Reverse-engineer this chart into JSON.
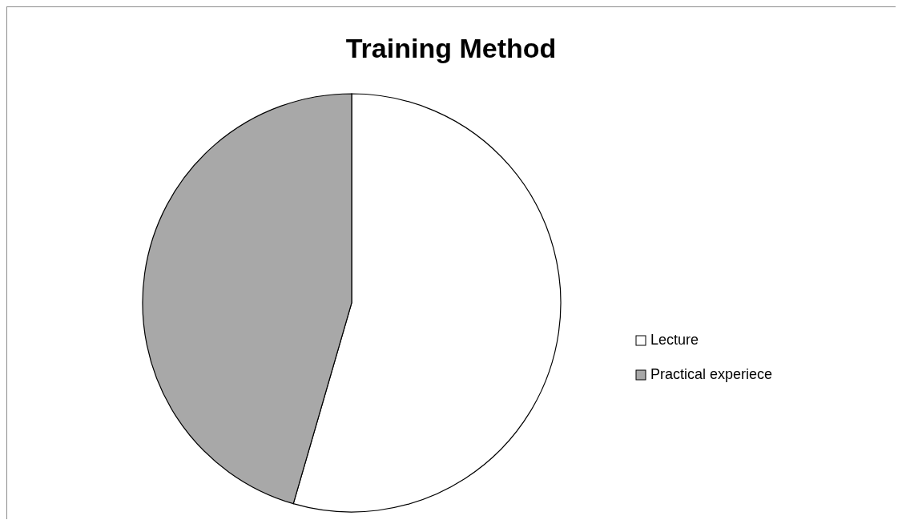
{
  "chart_data": {
    "type": "pie",
    "title": "Training Method",
    "categories": [
      "Lecture",
      "Practical experiece"
    ],
    "values": [
      54.5,
      45.5
    ],
    "colors": [
      "#ffffff",
      "#a8a8a8"
    ],
    "legend": "right"
  }
}
